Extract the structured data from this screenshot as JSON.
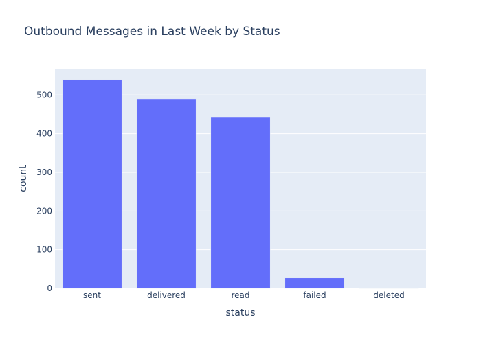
{
  "chart_data": {
    "type": "bar",
    "title": "Outbound Messages in Last Week by Status",
    "xlabel": "status",
    "ylabel": "count",
    "categories": [
      "sent",
      "delivered",
      "read",
      "failed",
      "deleted"
    ],
    "values": [
      540,
      490,
      442,
      27,
      1
    ],
    "ylim": [
      0,
      568
    ],
    "yticks": [
      0,
      100,
      200,
      300,
      400,
      500
    ],
    "grid": true,
    "legend": "none",
    "colors": {
      "bar": "#636efa",
      "plot_background": "#e5ecf6",
      "grid": "#ffffff",
      "text": "#2a3f5f"
    }
  }
}
